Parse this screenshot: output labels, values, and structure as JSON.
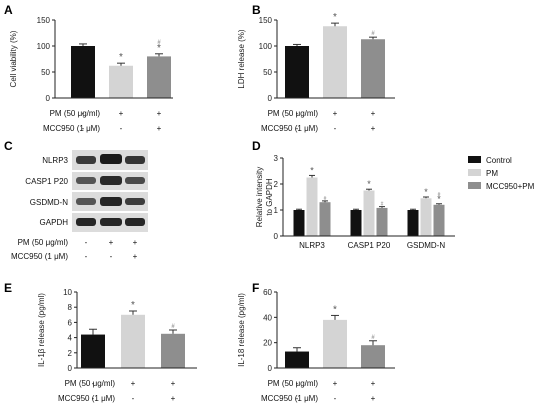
{
  "figure": {
    "panel_letters": [
      "A",
      "B",
      "C",
      "D",
      "E",
      "F"
    ]
  },
  "colors": {
    "black": "#111111",
    "light": "#d4d4d4",
    "mid": "#8e8e8e",
    "axis": "#222222"
  },
  "treatment_table": {
    "pm_label": "PM (50 μg/ml)",
    "mcc_label": "MCC950 (1 μM)",
    "pm_signs": [
      "-",
      "+",
      "+"
    ],
    "mcc_signs": [
      "-",
      "-",
      "+"
    ]
  },
  "blot": {
    "labels": [
      "NLRP3",
      "CASP1 P20",
      "GSDMD-N",
      "GAPDH"
    ]
  },
  "chart_data": [
    {
      "panel": "A",
      "type": "bar",
      "ylabel": "Cell viability (%)",
      "yticks": [
        "0",
        "50",
        "100",
        "150"
      ],
      "ylim": [
        0,
        150
      ],
      "values": [
        100,
        62,
        80
      ],
      "errors": [
        4,
        5,
        5
      ],
      "sig_star": [
        "",
        "*",
        "*"
      ],
      "sig_hash": [
        "",
        "",
        "#"
      ]
    },
    {
      "panel": "B",
      "type": "bar",
      "ylabel": "LDH release (%)",
      "yticks": [
        "0",
        "50",
        "100",
        "150"
      ],
      "ylim": [
        0,
        150
      ],
      "values": [
        100,
        138,
        113
      ],
      "errors": [
        3,
        6,
        4
      ],
      "sig_star": [
        "",
        "*",
        ""
      ],
      "sig_hash": [
        "",
        "",
        "#"
      ]
    },
    {
      "panel": "D",
      "type": "bar",
      "ylabel": "Relative intensity to GAPDH",
      "yticks": [
        "0",
        "1",
        "2",
        "3"
      ],
      "ylim": [
        0,
        3
      ],
      "categories": [
        "NLRP3",
        "CASP1 P20",
        "GSDMD-N"
      ],
      "series": [
        {
          "name": "Control",
          "values": [
            1.0,
            1.0,
            1.0
          ],
          "errors": [
            0.03,
            0.03,
            0.03
          ]
        },
        {
          "name": "PM",
          "values": [
            2.25,
            1.75,
            1.45
          ],
          "errors": [
            0.08,
            0.05,
            0.05
          ]
        },
        {
          "name": "MCC950+PM",
          "values": [
            1.3,
            1.08,
            1.2
          ],
          "errors": [
            0.05,
            0.05,
            0.04
          ]
        }
      ],
      "sig_star": [
        [
          "",
          "*",
          ""
        ],
        [
          "",
          "*",
          ""
        ],
        [
          "",
          "*",
          "*"
        ]
      ],
      "sig_hash": [
        [
          "",
          "",
          "#"
        ],
        [
          "",
          "",
          "#"
        ],
        [
          "",
          "",
          "#"
        ]
      ],
      "legend_position": "top-right"
    },
    {
      "panel": "E",
      "type": "bar",
      "ylabel": "IL-1β release (pg/ml)",
      "yticks": [
        "0",
        "2",
        "4",
        "6",
        "8",
        "10"
      ],
      "ylim": [
        0,
        10
      ],
      "values": [
        4.4,
        7.0,
        4.5
      ],
      "errors": [
        0.7,
        0.5,
        0.5
      ],
      "sig_star": [
        "",
        "*",
        ""
      ],
      "sig_hash": [
        "",
        "",
        "#"
      ]
    },
    {
      "panel": "F",
      "type": "bar",
      "ylabel": "IL-18 release (pg/ml)",
      "yticks": [
        "0",
        "20",
        "40",
        "60"
      ],
      "ylim": [
        0,
        60
      ],
      "values": [
        13,
        38,
        18
      ],
      "errors": [
        3,
        3.5,
        3.5
      ],
      "sig_star": [
        "",
        "*",
        ""
      ],
      "sig_hash": [
        "",
        "",
        "#"
      ]
    }
  ]
}
